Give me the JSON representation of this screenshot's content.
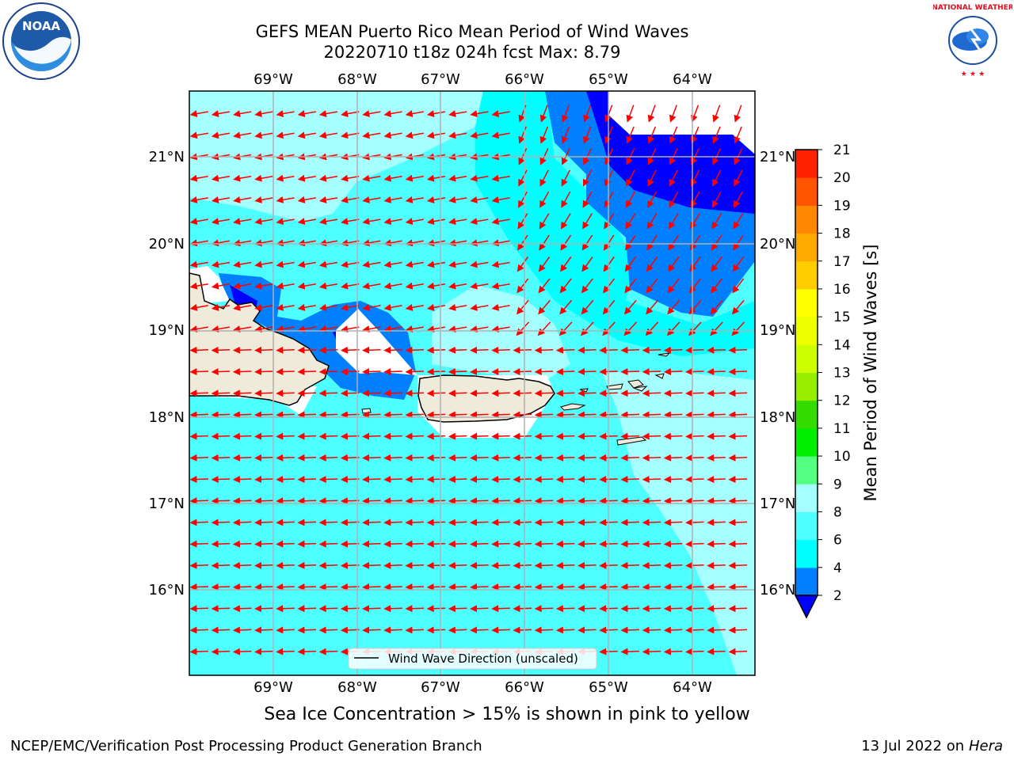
{
  "header": {
    "title_line1": "GEFS MEAN Puerto Rico Mean Period of Wind Waves",
    "title_line2": "20220710 t18z 024h fcst   Max: 8.79"
  },
  "logos": {
    "left": {
      "name": "noaa-logo",
      "text": "NOAA"
    },
    "right": {
      "name": "nws-logo",
      "text": "NATIONAL WEATHER SERVICE"
    }
  },
  "map": {
    "lon_labels": [
      "69°W",
      "68°W",
      "67°W",
      "66°W",
      "65°W",
      "64°W"
    ],
    "lat_labels": [
      "21°N",
      "20°N",
      "19°N",
      "18°N",
      "17°N",
      "16°N"
    ],
    "legend_label": "Wind Wave Direction (unscaled)",
    "extent": {
      "lon": [
        -70.0,
        -63.25
      ],
      "lat": [
        15.0,
        21.75
      ]
    },
    "colors": {
      "ocean_light": "#4dffff",
      "ocean_pale": "#a6ffff",
      "ocean_cyan": "#00ffff",
      "blue_mid": "#0080ff",
      "blue_dark": "#0000ff",
      "land": "#efebdb",
      "arrow": "#ff0000"
    }
  },
  "colorbar": {
    "label": "Mean Period of Wind Waves [s]",
    "ticks": [
      "2",
      "4",
      "6",
      "8",
      "9",
      "10",
      "11",
      "12",
      "13",
      "14",
      "15",
      "16",
      "17",
      "18",
      "19",
      "20",
      "21"
    ],
    "colors": [
      "#0080ff",
      "#00ffff",
      "#4dffff",
      "#a6ffff",
      "#52ff80",
      "#00ee00",
      "#33dd00",
      "#99ee00",
      "#ccff00",
      "#eeff00",
      "#ffff00",
      "#ffcc00",
      "#ffaa00",
      "#ff8800",
      "#ff5500",
      "#ff2200",
      "#ff0000"
    ],
    "extend_color": "#0000ff"
  },
  "footer": {
    "subtitle": "Sea Ice Concentration > 15% is shown in pink to yellow",
    "left": "NCEP/EMC/Verification Post Processing Product Generation Branch",
    "right_date": "13 Jul 2022 on ",
    "right_host": "Hera"
  }
}
